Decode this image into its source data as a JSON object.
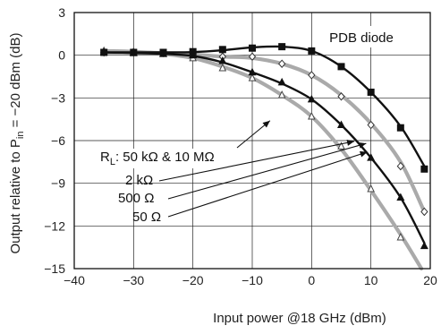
{
  "chart_data": {
    "type": "line",
    "title": "",
    "xlabel": "Input power  @18 GHz (dBm)",
    "ylabel_main": "Output relative to P",
    "ylabel_sub": "in",
    "ylabel_tail": " = −20 dBm (dB)",
    "xlim": [
      -40,
      20
    ],
    "ylim": [
      -15,
      3
    ],
    "x_ticks": [
      -40,
      -30,
      -20,
      -10,
      0,
      10,
      20
    ],
    "x_tick_labels": [
      "−40",
      "−30",
      "−20",
      "−10",
      "0",
      "10",
      "20"
    ],
    "y_ticks": [
      3,
      0,
      -3,
      -6,
      -9,
      -12,
      -15
    ],
    "y_tick_labels": [
      "3",
      "0",
      "−3",
      "−6",
      "−9",
      "−12",
      "−15"
    ],
    "grid": true,
    "inset_label": "PDB diode",
    "annotation_lines": [
      {
        "text": "R",
        "sub": "L",
        "rest": ": 50 kΩ & 10 MΩ"
      },
      {
        "text": "2 kΩ"
      },
      {
        "text": "500 Ω"
      },
      {
        "text": "50 Ω"
      }
    ],
    "series": [
      {
        "color": "#111111",
        "marker": "square",
        "curve": [
          [
            -35,
            0.2
          ],
          [
            -30,
            0.2
          ],
          [
            -25,
            0.2
          ],
          [
            -20,
            0.22
          ],
          [
            -15,
            0.35
          ],
          [
            -10,
            0.55
          ],
          [
            -5,
            0.6
          ],
          [
            0,
            0.3
          ],
          [
            5,
            -0.8
          ],
          [
            10,
            -2.6
          ],
          [
            15,
            -5.0
          ],
          [
            19,
            -7.8
          ]
        ],
        "markers": [
          [
            -35,
            0.2
          ],
          [
            -30,
            0.2
          ],
          [
            -25,
            0.2
          ],
          [
            -20,
            0.25
          ],
          [
            -15,
            0.4
          ],
          [
            -10,
            0.5
          ],
          [
            -5,
            0.6
          ],
          [
            0,
            0.3
          ],
          [
            5,
            -0.8
          ],
          [
            10,
            -2.6
          ],
          [
            15,
            -5.1
          ],
          [
            19,
            -8.0
          ]
        ]
      },
      {
        "color": "#aaaaaa",
        "marker": "diamond",
        "curve": [
          [
            -35,
            0.2
          ],
          [
            -30,
            0.2
          ],
          [
            -25,
            0.15
          ],
          [
            -20,
            0.05
          ],
          [
            -15,
            -0.1
          ],
          [
            -10,
            -0.2
          ],
          [
            -5,
            -0.6
          ],
          [
            0,
            -1.4
          ],
          [
            5,
            -2.8
          ],
          [
            10,
            -4.8
          ],
          [
            15,
            -7.5
          ],
          [
            19,
            -11.0
          ]
        ],
        "markers": [
          [
            -35,
            0.2
          ],
          [
            -30,
            0.2
          ],
          [
            -25,
            0.15
          ],
          [
            -20,
            0.05
          ],
          [
            -15,
            -0.1
          ],
          [
            -10,
            -0.1
          ],
          [
            -5,
            -0.6
          ],
          [
            0,
            -1.4
          ],
          [
            5,
            -2.9
          ],
          [
            10,
            -4.9
          ],
          [
            15,
            -7.8
          ],
          [
            19,
            -11.0
          ]
        ]
      },
      {
        "color": "#111111",
        "marker": "triangle",
        "curve": [
          [
            -35,
            0.2
          ],
          [
            -30,
            0.15
          ],
          [
            -25,
            0.1
          ],
          [
            -20,
            -0.05
          ],
          [
            -15,
            -0.5
          ],
          [
            -10,
            -1.2
          ],
          [
            -5,
            -2.0
          ],
          [
            0,
            -3.1
          ],
          [
            5,
            -4.9
          ],
          [
            10,
            -7.2
          ],
          [
            15,
            -10.0
          ],
          [
            19,
            -13.2
          ]
        ],
        "markers": [
          [
            -35,
            0.2
          ],
          [
            -30,
            0.15
          ],
          [
            -25,
            0.1
          ],
          [
            -20,
            0.0
          ],
          [
            -15,
            -0.4
          ],
          [
            -10,
            -1.2
          ],
          [
            -5,
            -1.9
          ],
          [
            0,
            -3.1
          ],
          [
            5,
            -4.9
          ],
          [
            10,
            -7.2
          ],
          [
            15,
            -10.0
          ],
          [
            19,
            -13.4
          ]
        ]
      },
      {
        "color": "#aaaaaa",
        "marker": "triangle_open",
        "curve": [
          [
            -35,
            0.3
          ],
          [
            -30,
            0.25
          ],
          [
            -25,
            0.1
          ],
          [
            -20,
            -0.2
          ],
          [
            -15,
            -0.8
          ],
          [
            -10,
            -1.6
          ],
          [
            -5,
            -2.8
          ],
          [
            0,
            -4.3
          ],
          [
            5,
            -6.6
          ],
          [
            10,
            -9.5
          ],
          [
            15,
            -12.6
          ],
          [
            18.5,
            -15.0
          ]
        ],
        "markers": [
          [
            -35,
            0.3
          ],
          [
            -30,
            0.25
          ],
          [
            -25,
            0.1
          ],
          [
            -20,
            -0.2
          ],
          [
            -15,
            -0.9
          ],
          [
            -10,
            -1.6
          ],
          [
            -5,
            -2.8
          ],
          [
            0,
            -4.3
          ],
          [
            5,
            -6.4
          ],
          [
            10,
            -9.4
          ],
          [
            15,
            -12.8
          ]
        ]
      }
    ]
  }
}
